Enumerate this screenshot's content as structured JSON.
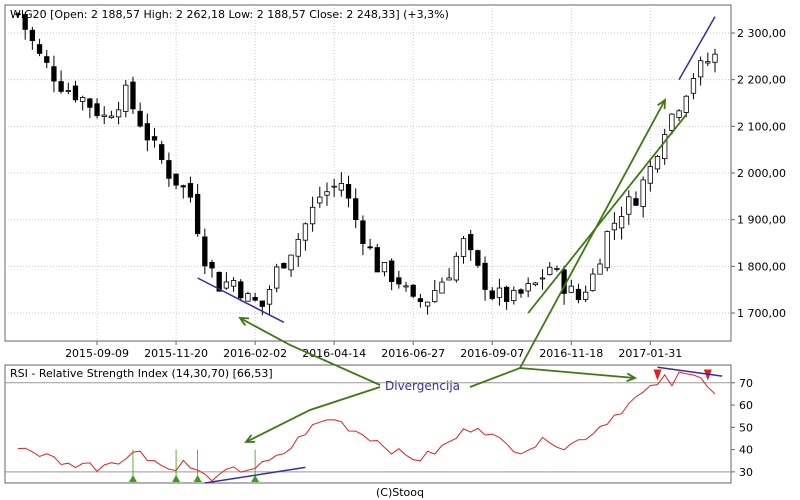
{
  "chart_data": [
    {
      "type": "candlestick",
      "title": "WIG20 [Open: 2 188,57  High: 2 262,18  Low: 2 188,57  Close: 2 248,33] (+3,3%)",
      "ylim": [
        1640,
        2360
      ],
      "yticks": [
        {
          "v": 1700,
          "label": "1 700,00"
        },
        {
          "v": 1800,
          "label": "1 800,00"
        },
        {
          "v": 1900,
          "label": "1 900,00"
        },
        {
          "v": 2000,
          "label": "2 000,00"
        },
        {
          "v": 2100,
          "label": "2 100,00"
        },
        {
          "v": 2200,
          "label": "2 200,00"
        },
        {
          "v": 2300,
          "label": "2 300,00"
        }
      ],
      "xticks": [
        {
          "i": 11,
          "label": "2015-09-09"
        },
        {
          "i": 22,
          "label": "2015-11-20"
        },
        {
          "i": 33,
          "label": "2016-02-02"
        },
        {
          "i": 44,
          "label": "2016-04-14"
        },
        {
          "i": 55,
          "label": "2016-06-27"
        },
        {
          "i": 66,
          "label": "2016-09-07"
        },
        {
          "i": 77,
          "label": "2016-11-18"
        },
        {
          "i": 88,
          "label": "2017-01-31"
        }
      ],
      "grid": true,
      "n_bars": 98,
      "close_path": [
        [
          0,
          2340
        ],
        [
          3,
          2250
        ],
        [
          6,
          2190
        ],
        [
          9,
          2160
        ],
        [
          12,
          2120
        ],
        [
          15,
          2170
        ],
        [
          18,
          2080
        ],
        [
          21,
          2000
        ],
        [
          24,
          1950
        ],
        [
          26,
          1820
        ],
        [
          28,
          1760
        ],
        [
          30,
          1770
        ],
        [
          32,
          1730
        ],
        [
          34,
          1715
        ],
        [
          36,
          1790
        ],
        [
          39,
          1860
        ],
        [
          42,
          1950
        ],
        [
          45,
          1980
        ],
        [
          47,
          1900
        ],
        [
          50,
          1800
        ],
        [
          53,
          1770
        ],
        [
          55,
          1720
        ],
        [
          57,
          1730
        ],
        [
          60,
          1790
        ],
        [
          62,
          1850
        ],
        [
          64,
          1790
        ],
        [
          66,
          1740
        ],
        [
          69,
          1730
        ],
        [
          72,
          1760
        ],
        [
          74,
          1800
        ],
        [
          76,
          1760
        ],
        [
          78,
          1730
        ],
        [
          80,
          1780
        ],
        [
          82,
          1870
        ],
        [
          84,
          1920
        ],
        [
          86,
          1950
        ],
        [
          88,
          2010
        ],
        [
          90,
          2100
        ],
        [
          92,
          2150
        ],
        [
          94,
          2210
        ],
        [
          96,
          2240
        ],
        [
          97,
          2250
        ]
      ]
    },
    {
      "type": "line",
      "title": "RSI - Relative Strength Index (14,30,70) [66,53]",
      "ylim": [
        25,
        78
      ],
      "yticks": [
        30,
        40,
        50,
        60,
        70
      ],
      "hlines": [
        30,
        70
      ],
      "n_points": 98,
      "rsi_path": [
        [
          0,
          42
        ],
        [
          3,
          38
        ],
        [
          5,
          36
        ],
        [
          7,
          33
        ],
        [
          9,
          34
        ],
        [
          11,
          32
        ],
        [
          13,
          35
        ],
        [
          15,
          36
        ],
        [
          16,
          38
        ],
        [
          17,
          40
        ],
        [
          18,
          37
        ],
        [
          20,
          33
        ],
        [
          21,
          31
        ],
        [
          23,
          34
        ],
        [
          24,
          32
        ],
        [
          25,
          30
        ],
        [
          26,
          28
        ],
        [
          27,
          25
        ],
        [
          28,
          27
        ],
        [
          29,
          30
        ],
        [
          31,
          31
        ],
        [
          33,
          32
        ],
        [
          34,
          33
        ],
        [
          36,
          36
        ],
        [
          38,
          41
        ],
        [
          40,
          48
        ],
        [
          42,
          52
        ],
        [
          44,
          54
        ],
        [
          46,
          50
        ],
        [
          48,
          47
        ],
        [
          50,
          44
        ],
        [
          52,
          40
        ],
        [
          54,
          37
        ],
        [
          56,
          36
        ],
        [
          58,
          39
        ],
        [
          60,
          43
        ],
        [
          62,
          48
        ],
        [
          64,
          51
        ],
        [
          66,
          46
        ],
        [
          68,
          42
        ],
        [
          70,
          40
        ],
        [
          72,
          42
        ],
        [
          74,
          45
        ],
        [
          76,
          41
        ],
        [
          78,
          44
        ],
        [
          80,
          48
        ],
        [
          82,
          53
        ],
        [
          84,
          58
        ],
        [
          86,
          63
        ],
        [
          88,
          67
        ],
        [
          89,
          70
        ],
        [
          90,
          72
        ],
        [
          91,
          68
        ],
        [
          92,
          74
        ],
        [
          93,
          76
        ],
        [
          94,
          75
        ],
        [
          95,
          73
        ],
        [
          96,
          68
        ],
        [
          97,
          64
        ],
        [
          98,
          67
        ]
      ],
      "buy_signals": [
        16,
        22,
        25,
        33
      ],
      "sell_signals": [
        89,
        96
      ]
    }
  ],
  "annotation": {
    "label": "Divergencija"
  },
  "credit": "(C)Stooq",
  "colors": {
    "rsi_line": "#e22020",
    "arrow": "#3c7a10",
    "trendline": "#3b2aa8",
    "buy": "#38a010",
    "sell": "#e02020",
    "grid": "#c8c8c8"
  }
}
